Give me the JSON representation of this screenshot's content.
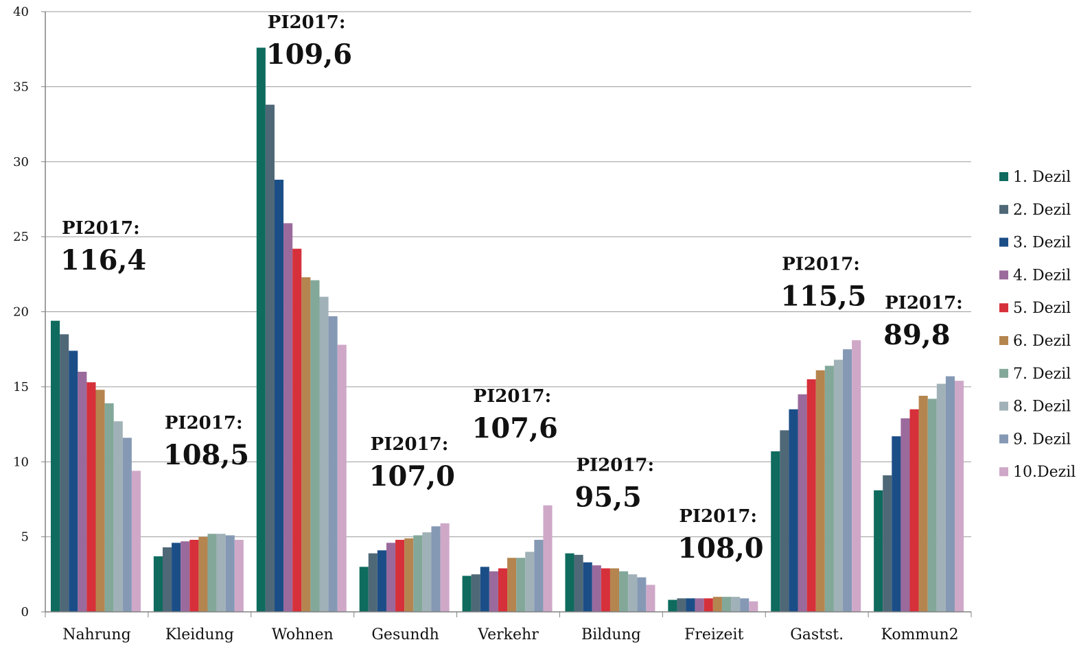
{
  "chart_data": {
    "type": "bar",
    "title": "",
    "xlabel": "",
    "ylabel": "",
    "ylim": [
      0,
      40
    ],
    "yticks": [
      0,
      5,
      10,
      15,
      20,
      25,
      30,
      35,
      40
    ],
    "grid": true,
    "legend_position": "right",
    "categories": [
      "Nahrung",
      "Kleidung",
      "Wohnen",
      "Gesundh",
      "Verkehr",
      "Bildung",
      "Freizeit",
      "Gastst.",
      "Kommun2"
    ],
    "series": [
      {
        "name": "1. Dezil",
        "color": "#0e6b5e",
        "values": [
          19.4,
          3.7,
          37.6,
          3.0,
          2.4,
          3.9,
          0.8,
          10.7,
          8.1
        ]
      },
      {
        "name": "2. Dezil",
        "color": "#4f6877",
        "values": [
          18.5,
          4.3,
          33.8,
          3.9,
          2.5,
          3.8,
          0.9,
          12.1,
          9.1
        ]
      },
      {
        "name": "3. Dezil",
        "color": "#1b4e87",
        "values": [
          17.4,
          4.6,
          28.8,
          4.1,
          3.0,
          3.3,
          0.9,
          13.5,
          11.7
        ]
      },
      {
        "name": "4. Dezil",
        "color": "#9b6a9c",
        "values": [
          16.0,
          4.7,
          25.9,
          4.6,
          2.7,
          3.1,
          0.9,
          14.5,
          12.9
        ]
      },
      {
        "name": "5. Dezil",
        "color": "#d6303a",
        "values": [
          15.3,
          4.8,
          24.2,
          4.8,
          2.9,
          2.9,
          0.9,
          15.5,
          13.5
        ]
      },
      {
        "name": "6. Dezil",
        "color": "#b5854f",
        "values": [
          14.8,
          5.0,
          22.3,
          4.9,
          3.6,
          2.9,
          1.0,
          16.1,
          14.4
        ]
      },
      {
        "name": "7. Dezil",
        "color": "#83a89a",
        "values": [
          13.9,
          5.2,
          22.1,
          5.1,
          3.6,
          2.7,
          1.0,
          16.4,
          14.2
        ]
      },
      {
        "name": "8. Dezil",
        "color": "#a1b1b8",
        "values": [
          12.7,
          5.2,
          21.0,
          5.3,
          4.0,
          2.5,
          1.0,
          16.8,
          15.2
        ]
      },
      {
        "name": "9. Dezil",
        "color": "#8599b5",
        "values": [
          11.6,
          5.1,
          19.7,
          5.7,
          4.8,
          2.3,
          0.9,
          17.5,
          15.7
        ]
      },
      {
        "name": "10.Dezil",
        "color": "#cfa8c8",
        "values": [
          9.4,
          4.8,
          17.8,
          5.9,
          7.1,
          1.8,
          0.7,
          18.1,
          15.4
        ]
      }
    ],
    "annotations": [
      {
        "category": "Nahrung",
        "label": "PI2017:",
        "value": "116,4",
        "y": 25.2
      },
      {
        "category": "Kleidung",
        "label": "PI2017:",
        "value": "108,5",
        "y": 12.2
      },
      {
        "category": "Wohnen",
        "label": "PI2017:",
        "value": "109,6",
        "y": 38.9
      },
      {
        "category": "Gesundh",
        "label": "PI2017:",
        "value": "107,0",
        "y": 10.8
      },
      {
        "category": "Verkehr",
        "label": "PI2017:",
        "value": "107,6",
        "y": 14.0
      },
      {
        "category": "Bildung",
        "label": "PI2017:",
        "value": "95,5",
        "y": 9.4
      },
      {
        "category": "Freizeit",
        "label": "PI2017:",
        "value": "108,0",
        "y": 6.0
      },
      {
        "category": "Gastst.",
        "label": "PI2017:",
        "value": "115,5",
        "y": 22.8
      },
      {
        "category": "Kommun2",
        "label": "PI2017:",
        "value": "89,8",
        "y": 20.2
      }
    ]
  }
}
